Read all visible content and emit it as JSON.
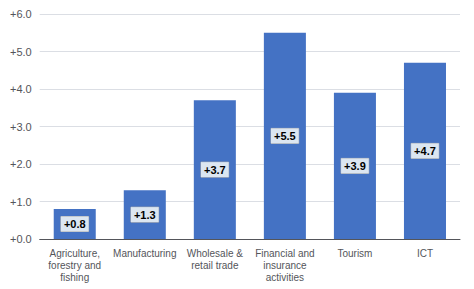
{
  "chart_data": {
    "type": "bar",
    "categories": [
      "Agriculture,\nforestry and\nfishing",
      "Manufacturing",
      "Wholesale &\nretail trade",
      "Financial and\ninsurance\nactivities",
      "Tourism",
      "ICT"
    ],
    "values": [
      0.8,
      1.3,
      3.7,
      5.5,
      3.9,
      4.7
    ],
    "value_labels": [
      "+0.8",
      "+1.3",
      "+3.7",
      "+5.5",
      "+3.9",
      "+4.7"
    ],
    "data_labels": true,
    "color": "#4472C4",
    "ylim": [
      0.0,
      6.0
    ],
    "yticks": [
      {
        "value": 0.0,
        "label": "+0.0"
      },
      {
        "value": 1.0,
        "label": "+1.0"
      },
      {
        "value": 2.0,
        "label": "+2.0"
      },
      {
        "value": 3.0,
        "label": "+3.0"
      },
      {
        "value": 4.0,
        "label": "+4.0"
      },
      {
        "value": 5.0,
        "label": "+5.0"
      },
      {
        "value": 6.0,
        "label": "+6.0"
      }
    ],
    "grid": true
  }
}
